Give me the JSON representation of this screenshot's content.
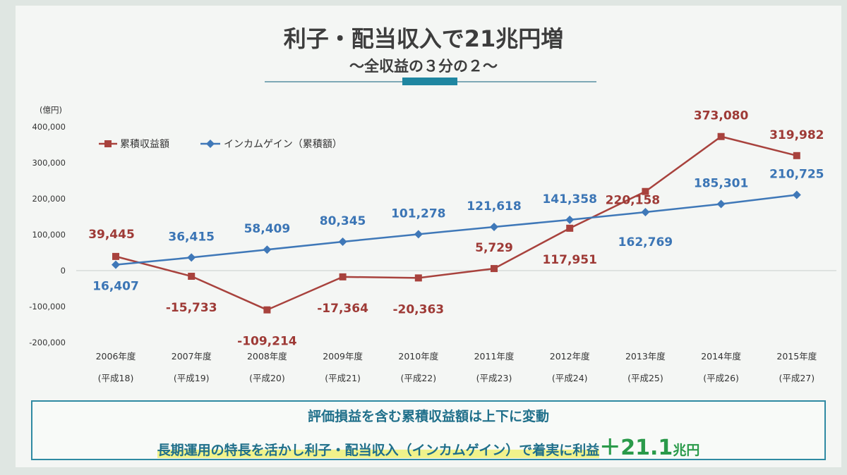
{
  "title": "利子・配当収入で21兆円増",
  "subtitle": "〜全収益の３分の２〜",
  "chart_data": {
    "type": "line",
    "y_unit": "(億円)",
    "ylim": [
      -200000,
      400000
    ],
    "y_ticks": [
      "400,000",
      "300,000",
      "200,000",
      "100,000",
      "0",
      "-100,000",
      "-200,000"
    ],
    "categories": [
      "2006年度",
      "2007年度",
      "2008年度",
      "2009年度",
      "2010年度",
      "2011年度",
      "2012年度",
      "2013年度",
      "2014年度",
      "2015年度"
    ],
    "sub_categories": [
      "(平成18)",
      "(平成19)",
      "(平成20)",
      "(平成21)",
      "(平成22)",
      "(平成23)",
      "(平成24)",
      "(平成25)",
      "(平成26)",
      "(平成27)"
    ],
    "series": [
      {
        "name": "累積収益額",
        "color": "#a8423d",
        "marker": "square",
        "values": [
          39445,
          -15733,
          -109214,
          -17364,
          -20363,
          5729,
          117951,
          220158,
          373080,
          319982
        ],
        "labels": [
          "39,445",
          "-15,733",
          "-109,214",
          "-17,364",
          "-20,363",
          "5,729",
          "117,951",
          "220,158",
          "373,080",
          "319,982"
        ]
      },
      {
        "name": "インカムゲイン（累積額）",
        "color": "#3f78b8",
        "marker": "diamond",
        "values": [
          16407,
          36415,
          58409,
          80345,
          101278,
          121618,
          141358,
          162769,
          185301,
          210725
        ],
        "labels": [
          "16,407",
          "36,415",
          "58,409",
          "80,345",
          "101,278",
          "121,618",
          "141,358",
          "162,769",
          "185,301",
          "210,725"
        ]
      }
    ],
    "legend_position": "top-left",
    "grid": false
  },
  "callout": {
    "line1": "評価損益を含む累積収益額は上下に変動",
    "line2_prefix": "長期運用の特長を活かし利子・配当収入（インカムゲイン）で着実に利益",
    "line2_value": "＋21.1",
    "line2_unit": "兆円"
  }
}
